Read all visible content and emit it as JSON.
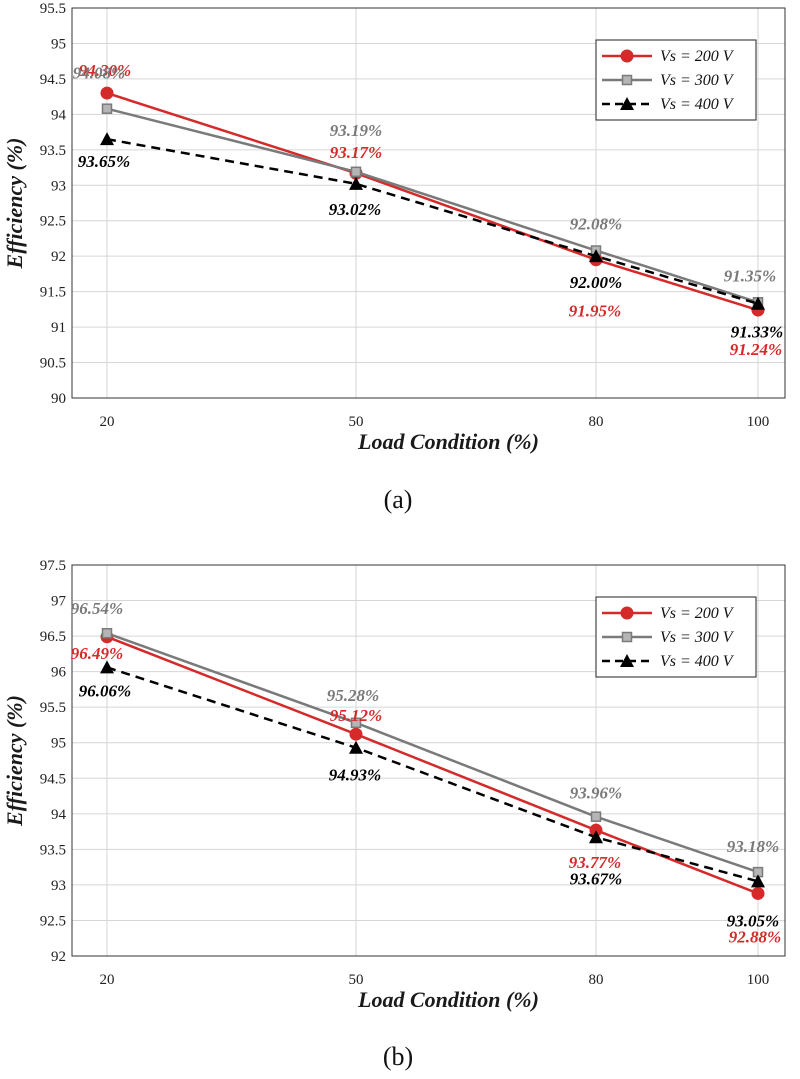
{
  "chart_data": [
    {
      "panel": "(a)",
      "type": "line",
      "xlabel": "Load Condition (%)",
      "ylabel": "Efficiency (%)",
      "categories": [
        "20",
        "50",
        "80",
        "100"
      ],
      "x": [
        20,
        50,
        80,
        100
      ],
      "ylim": [
        90,
        95.5
      ],
      "yticks": [
        "90",
        "90.5",
        "91",
        "91.5",
        "92",
        "92.5",
        "93",
        "93.5",
        "94",
        "94.5",
        "95",
        "95.5"
      ],
      "grid": true,
      "legend_position": "top-right",
      "series": [
        {
          "name": "Vs = 200 V",
          "color": "#d42a2a",
          "marker": "circle",
          "dash": "solid",
          "values": [
            94.3,
            93.17,
            91.95,
            91.24
          ],
          "labels": [
            "94.30%",
            "93.17%",
            "91.95%",
            "91.24%"
          ]
        },
        {
          "name": "Vs = 300 V",
          "color": "#7a7a7a",
          "marker": "square",
          "dash": "solid",
          "values": [
            94.08,
            93.19,
            92.08,
            91.35
          ],
          "labels": [
            "94.08%",
            "93.19%",
            "92.08%",
            "91.35%"
          ]
        },
        {
          "name": "Vs = 400 V",
          "color": "#000000",
          "marker": "triangle",
          "dash": "dashed",
          "values": [
            93.65,
            93.02,
            92.0,
            91.33
          ],
          "labels": [
            "93.65%",
            "93.02%",
            "92.00%",
            "91.33%"
          ]
        }
      ]
    },
    {
      "panel": "(b)",
      "type": "line",
      "xlabel": "Load Condition (%)",
      "ylabel": "Efficiency (%)",
      "categories": [
        "20",
        "50",
        "80",
        "100"
      ],
      "x": [
        20,
        50,
        80,
        100
      ],
      "ylim": [
        92,
        97.5
      ],
      "yticks": [
        "92",
        "92.5",
        "93",
        "93.5",
        "94",
        "94.5",
        "95",
        "95.5",
        "96",
        "96.5",
        "97",
        "97.5"
      ],
      "grid": true,
      "legend_position": "top-right",
      "series": [
        {
          "name": "Vs = 200 V",
          "color": "#d42a2a",
          "marker": "circle",
          "dash": "solid",
          "values": [
            96.49,
            95.12,
            93.77,
            92.88
          ],
          "labels": [
            "96.49%",
            "95.12%",
            "93.77%",
            "92.88%"
          ]
        },
        {
          "name": "Vs = 300 V",
          "color": "#7a7a7a",
          "marker": "square",
          "dash": "solid",
          "values": [
            96.54,
            95.28,
            93.96,
            93.18
          ],
          "labels": [
            "96.54%",
            "95.28%",
            "93.96%",
            "93.18%"
          ]
        },
        {
          "name": "Vs = 400 V",
          "color": "#000000",
          "marker": "triangle",
          "dash": "dashed",
          "values": [
            96.06,
            94.93,
            93.67,
            93.05
          ],
          "labels": [
            "96.06%",
            "94.93%",
            "93.67%",
            "93.05%"
          ]
        }
      ]
    }
  ]
}
